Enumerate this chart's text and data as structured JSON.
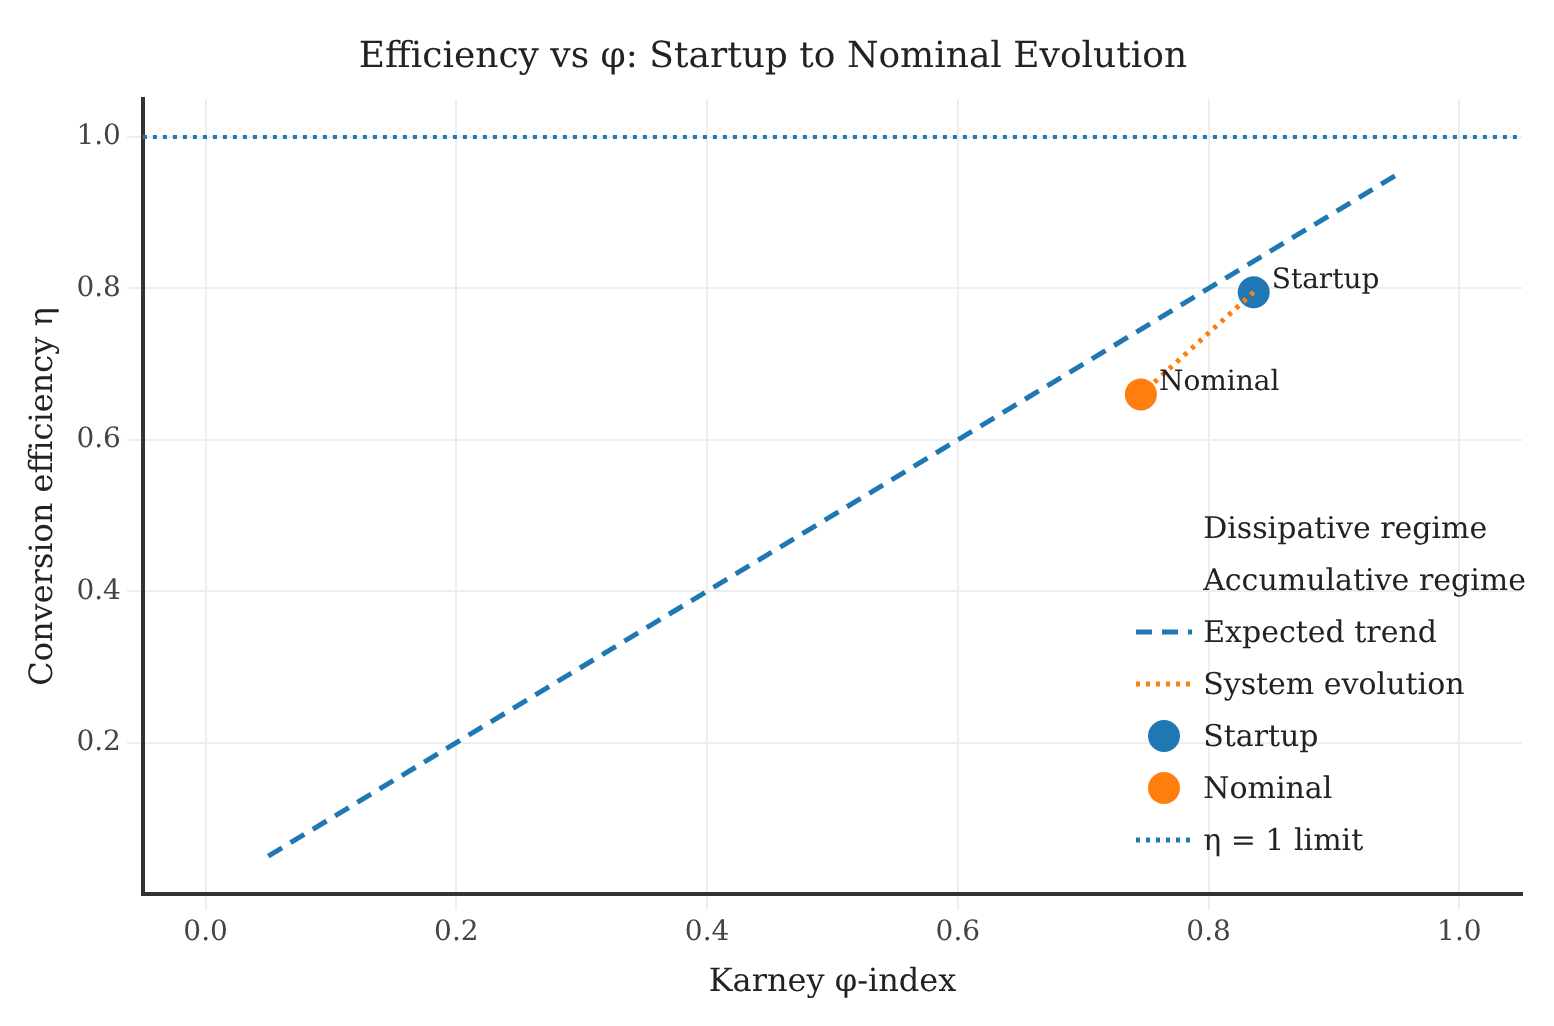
{
  "chart_data": {
    "type": "scatter",
    "title": "Efficiency vs φ: Startup to Nominal Evolution",
    "xlabel": "Karney φ-index",
    "ylabel": "Conversion efficiency η",
    "xlim": [
      -0.05,
      1.05
    ],
    "ylim": [
      0,
      1.05
    ],
    "xticks": [
      {
        "value": 0,
        "label": "0.0"
      },
      0.2,
      0.4,
      0.6,
      0.8,
      {
        "value": 1,
        "label": "1.0"
      }
    ],
    "yticks": [
      0.2,
      0.4,
      0.6,
      0.8,
      {
        "value": 1,
        "label": "1.0"
      }
    ],
    "grid": true,
    "legend": "bottom right",
    "series": [
      {
        "name": "Dissipative regime",
        "type": "area"
      },
      {
        "name": "Accumulative regime",
        "type": "area"
      },
      {
        "name": "Expected trend",
        "type": "line",
        "line_style": "dashed",
        "marker": "none",
        "color": "#1f77b4",
        "x": [
          0.05,
          0.95
        ],
        "values": [
          0.05,
          0.95
        ]
      },
      {
        "name": "System evolution",
        "type": "line",
        "line_style": "dotted",
        "marker": "none",
        "color": "#ff7f0e",
        "x": [
          0.836,
          0.746
        ],
        "values": [
          0.795,
          0.66
        ]
      },
      {
        "name": "Startup",
        "type": "scatter",
        "marker": "circle",
        "color": "#1f77b4",
        "x": [
          0.836
        ],
        "values": [
          0.795
        ]
      },
      {
        "name": "Nominal",
        "type": "scatter",
        "marker": "circle",
        "color": "#ff7f0e",
        "x": [
          0.746
        ],
        "values": [
          0.66
        ]
      }
    ],
    "ref_lines": [
      {
        "axis": "y",
        "value": 1.0,
        "label": "η = 1 limit",
        "color": "#1f77b4",
        "line_style": "dotted"
      }
    ]
  }
}
